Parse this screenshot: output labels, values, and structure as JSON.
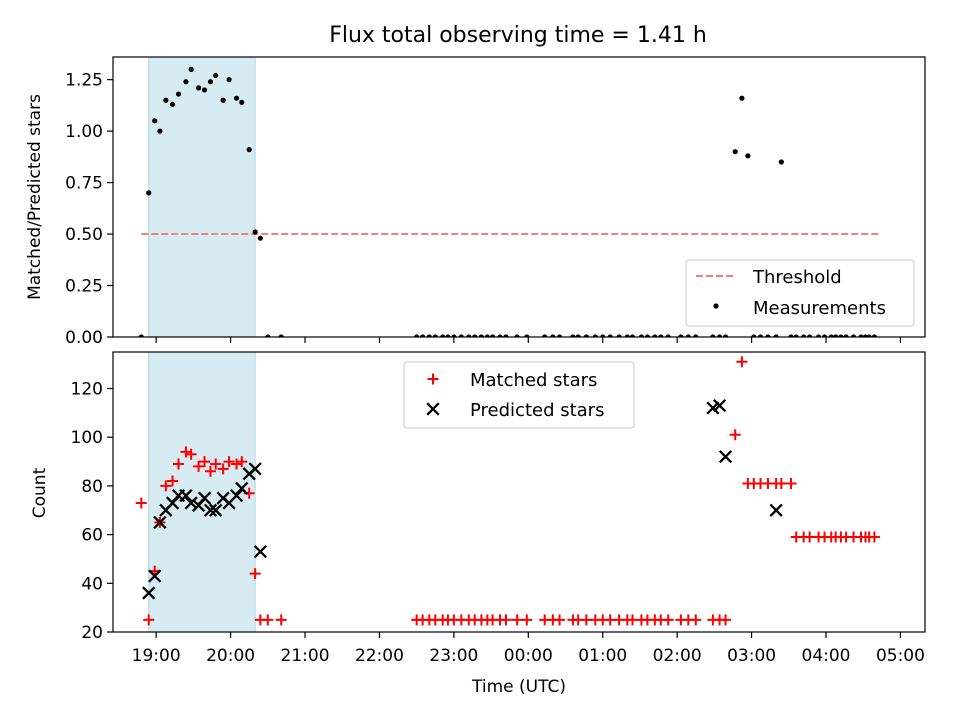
{
  "chart_data": [
    {
      "type": "scatter",
      "title": "Flux total observing time = 1.41 h",
      "xlabel": "",
      "ylabel": "Matched/Predicted stars",
      "xlim": [
        -0.58,
        10.33
      ],
      "ylim": [
        0,
        1.36
      ],
      "y_ticks": [
        0,
        0.25,
        0.5,
        0.75,
        1.0,
        1.25
      ],
      "y_tick_labels": [
        "0.00",
        "0.25",
        "0.50",
        "0.75",
        "1.00",
        "1.25"
      ],
      "shaded_span": [
        -0.1,
        1.33
      ],
      "threshold": {
        "name": "Threshold",
        "value": 0.5,
        "x_range": [
          -0.2,
          9.7
        ],
        "color": "#f08080"
      },
      "series": [
        {
          "name": "Measurements",
          "color": "#000000",
          "x": [
            -0.2,
            -0.1,
            -0.02,
            0.05,
            0.13,
            0.22,
            0.3,
            0.4,
            0.47,
            0.57,
            0.65,
            0.73,
            0.8,
            0.9,
            0.98,
            1.08,
            1.15,
            1.25,
            1.33,
            1.4,
            1.5,
            1.68,
            3.5,
            3.58,
            3.67,
            3.75,
            3.85,
            3.92,
            4.0,
            4.1,
            4.2,
            4.28,
            4.37,
            4.45,
            4.52,
            4.62,
            4.7,
            4.85,
            4.98,
            5.22,
            5.33,
            5.42,
            5.6,
            5.67,
            5.78,
            5.9,
            6.0,
            6.1,
            6.22,
            6.33,
            6.4,
            6.52,
            6.6,
            6.7,
            6.78,
            6.88,
            7.05,
            7.15,
            7.25,
            7.48,
            7.57,
            7.65,
            7.78,
            7.87,
            7.95,
            8.03,
            8.12,
            8.22,
            8.33,
            8.4,
            8.53,
            8.6,
            8.7,
            8.78,
            8.9,
            8.98,
            9.07,
            9.13,
            9.2,
            9.27,
            9.37,
            9.47,
            9.53,
            9.58,
            9.65
          ],
          "y": [
            0,
            0.7,
            1.05,
            1.0,
            1.15,
            1.13,
            1.18,
            1.24,
            1.3,
            1.21,
            1.2,
            1.24,
            1.27,
            1.15,
            1.25,
            1.16,
            1.14,
            0.91,
            0.51,
            0.48,
            0,
            0,
            0,
            0,
            0,
            0,
            0,
            0,
            0,
            0,
            0,
            0,
            0,
            0,
            0,
            0,
            0,
            0,
            0,
            0,
            0,
            0,
            0,
            0,
            0,
            0,
            0,
            0,
            0,
            0,
            0,
            0,
            0,
            0,
            0,
            0,
            0,
            0,
            0,
            0,
            0,
            0,
            0.9,
            1.16,
            0.88,
            0,
            0,
            0,
            0,
            0.85,
            0,
            0,
            0,
            0,
            0,
            0,
            0,
            0,
            0,
            0,
            0,
            0,
            0,
            0,
            0
          ]
        }
      ],
      "legend": {
        "position": "lower-right",
        "entries": [
          "Threshold",
          "Measurements"
        ]
      }
    },
    {
      "type": "scatter",
      "title": "",
      "xlabel": "Time (UTC)",
      "ylabel": "Count",
      "xlim": [
        -0.58,
        10.33
      ],
      "ylim": [
        20,
        135
      ],
      "x_ticks": [
        0,
        1,
        2,
        3,
        4,
        5,
        6,
        7,
        8,
        9,
        10
      ],
      "x_tick_labels": [
        "19:00",
        "20:00",
        "21:00",
        "22:00",
        "23:00",
        "00:00",
        "01:00",
        "02:00",
        "03:00",
        "04:00",
        "05:00"
      ],
      "y_ticks": [
        20,
        40,
        60,
        80,
        100,
        120
      ],
      "y_tick_labels": [
        "20",
        "40",
        "60",
        "80",
        "100",
        "120"
      ],
      "shaded_span": [
        -0.1,
        1.33
      ],
      "series": [
        {
          "name": "Matched stars",
          "marker": "plus",
          "color": "#ff0000",
          "x": [
            -0.2,
            -0.1,
            -0.02,
            0.05,
            0.13,
            0.22,
            0.3,
            0.4,
            0.47,
            0.57,
            0.65,
            0.73,
            0.8,
            0.9,
            0.98,
            1.08,
            1.15,
            1.25,
            1.33,
            1.4,
            1.5,
            1.68,
            3.5,
            3.58,
            3.67,
            3.75,
            3.85,
            3.92,
            4.0,
            4.1,
            4.2,
            4.28,
            4.37,
            4.45,
            4.52,
            4.62,
            4.7,
            4.85,
            4.98,
            5.22,
            5.33,
            5.42,
            5.6,
            5.67,
            5.78,
            5.9,
            6.0,
            6.1,
            6.22,
            6.33,
            6.4,
            6.52,
            6.6,
            6.7,
            6.78,
            6.88,
            7.05,
            7.15,
            7.25,
            7.48,
            7.57,
            7.65,
            7.78,
            7.87,
            7.95,
            8.03,
            8.12,
            8.22,
            8.33,
            8.4,
            8.53,
            8.6,
            8.7,
            8.78,
            8.9,
            8.98,
            9.07,
            9.13,
            9.2,
            9.27,
            9.37,
            9.47,
            9.53,
            9.58,
            9.65
          ],
          "y": [
            73,
            25,
            45,
            65,
            80,
            82,
            89,
            94,
            93,
            88,
            90,
            86,
            89,
            87,
            90,
            89,
            90,
            77,
            44,
            25,
            25,
            25,
            25,
            25,
            25,
            25,
            25,
            25,
            25,
            25,
            25,
            25,
            25,
            25,
            25,
            25,
            25,
            25,
            25,
            25,
            25,
            25,
            25,
            25,
            25,
            25,
            25,
            25,
            25,
            25,
            25,
            25,
            25,
            25,
            25,
            25,
            25,
            25,
            25,
            25,
            25,
            25,
            101,
            131,
            81,
            81,
            81,
            81,
            81,
            81,
            81,
            59,
            59,
            59,
            59,
            59,
            59,
            59,
            59,
            59,
            59,
            59,
            59,
            59,
            59
          ]
        },
        {
          "name": "Predicted stars",
          "marker": "x",
          "color": "#000000",
          "x": [
            -0.1,
            -0.02,
            0.05,
            0.13,
            0.22,
            0.3,
            0.4,
            0.47,
            0.57,
            0.65,
            0.73,
            0.8,
            0.9,
            0.98,
            1.08,
            1.15,
            1.25,
            1.33,
            1.4,
            7.48,
            7.57,
            7.65,
            8.33
          ],
          "y": [
            36,
            43,
            65,
            70,
            73,
            76,
            76,
            73,
            72,
            75,
            70,
            70,
            75,
            73,
            76,
            79,
            85,
            87,
            53,
            112,
            113,
            92,
            70
          ]
        }
      ],
      "legend": {
        "position": "upper-center",
        "entries": [
          "Matched stars",
          "Predicted stars"
        ]
      }
    }
  ]
}
